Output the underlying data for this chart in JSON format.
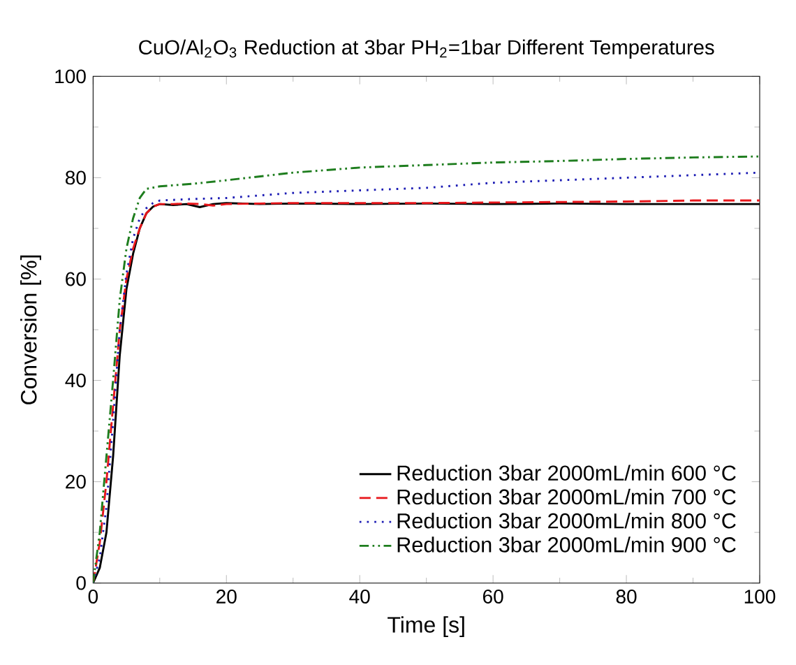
{
  "chart_data": {
    "type": "line",
    "title": "CuO/Al$_{2}$O$_{3}$ Reduction at 3bar PH$_{2}$=1bar Different Temperatures",
    "xlabel": "Time [s]",
    "ylabel": "Conversion [%]",
    "xlim": [
      0,
      100
    ],
    "ylim": [
      0,
      100
    ],
    "xticks": [
      0,
      20,
      40,
      60,
      80,
      100
    ],
    "yticks": [
      0,
      20,
      40,
      60,
      80,
      100
    ],
    "legend": "bottom right",
    "grid": false,
    "marker": "none",
    "series": [
      {
        "name": "Reduction 3bar 2000mL/min 600 °C",
        "color": "#000000",
        "line_style": "solid",
        "x": [
          0,
          1,
          2,
          3,
          4,
          5,
          6,
          7,
          8,
          9,
          10,
          12,
          14,
          16,
          18,
          20,
          25,
          30,
          40,
          50,
          60,
          70,
          80,
          90,
          100
        ],
        "values": [
          0,
          3,
          10,
          25,
          45,
          58,
          65,
          70,
          73,
          74.3,
          74.8,
          74.6,
          74.8,
          74.2,
          74.8,
          75,
          74.8,
          74.9,
          74.8,
          74.9,
          74.8,
          74.9,
          74.8,
          74.8,
          74.8
        ]
      },
      {
        "name": "Reduction 3bar 2000mL/min 700 °C",
        "color": "#e8161b",
        "line_style": "dashed",
        "x": [
          0,
          1,
          2,
          3,
          4,
          5,
          6,
          7,
          8,
          9,
          10,
          12,
          14,
          16,
          18,
          20,
          25,
          30,
          40,
          50,
          60,
          70,
          80,
          90,
          100
        ],
        "values": [
          0,
          8,
          20,
          35,
          50,
          60,
          66,
          70,
          73,
          74.3,
          74.8,
          74.8,
          74.9,
          74.8,
          74.5,
          74.8,
          74.9,
          75,
          75,
          75,
          75.1,
          75.2,
          75.3,
          75.5,
          75.5
        ]
      },
      {
        "name": "Reduction 3bar 2000mL/min 800 °C",
        "color": "#1c1cb4",
        "line_style": "dotted",
        "x": [
          0,
          1,
          2,
          3,
          4,
          5,
          6,
          7,
          8,
          9,
          10,
          15,
          20,
          30,
          40,
          50,
          60,
          70,
          80,
          90,
          100
        ],
        "values": [
          0,
          5,
          15,
          32,
          50,
          61,
          68,
          72,
          74,
          75,
          75.5,
          75.8,
          76,
          77,
          77.5,
          78,
          79,
          79.5,
          80,
          80.5,
          81
        ]
      },
      {
        "name": "Reduction 3bar 2000mL/min 900 °C",
        "color": "#1e7d1e",
        "line_style": "dashdotdot",
        "x": [
          0,
          1,
          2,
          3,
          4,
          5,
          6,
          7,
          8,
          10,
          15,
          20,
          30,
          40,
          50,
          60,
          70,
          80,
          90,
          100
        ],
        "values": [
          0,
          10,
          25,
          40,
          56,
          66,
          72,
          76,
          77.8,
          78.3,
          78.8,
          79.5,
          81,
          82,
          82.5,
          83,
          83.3,
          83.7,
          84,
          84.2
        ]
      }
    ]
  }
}
